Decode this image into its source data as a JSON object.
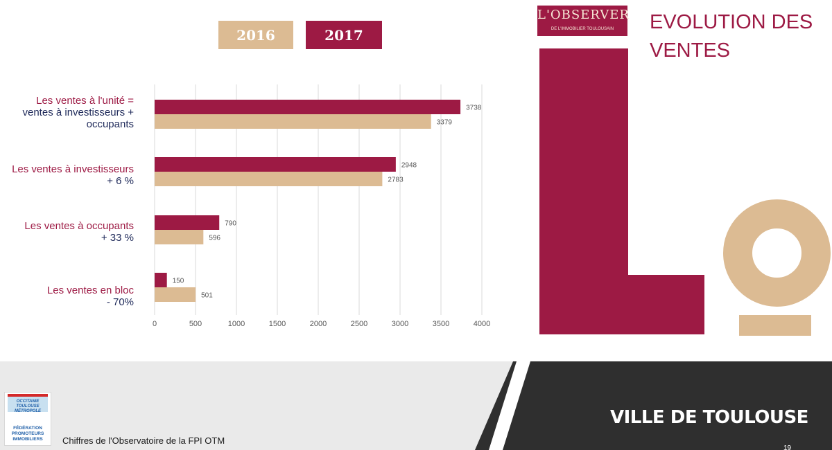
{
  "legend": {
    "y2016": "2016",
    "y2017": "2017"
  },
  "colors": {
    "y2016": "#dcbb93",
    "y2017": "#9d1a44",
    "category_line2": "#1f2a5a"
  },
  "chart_data": {
    "type": "bar",
    "orientation": "horizontal",
    "categories": [
      {
        "line1": "Les ventes à l'unité =",
        "line2": "ventes à investisseurs +",
        "line3": "occupants"
      },
      {
        "line1": "Les ventes à investisseurs",
        "line2": "+ 6 %"
      },
      {
        "line1": "Les ventes à occupants",
        "line2": "+ 33 %"
      },
      {
        "line1": "Les ventes en bloc",
        "line2": "- 70%"
      }
    ],
    "series": [
      {
        "name": "2017",
        "values": [
          3738,
          2948,
          790,
          150
        ]
      },
      {
        "name": "2016",
        "values": [
          3379,
          2783,
          596,
          501
        ]
      }
    ],
    "xlim": [
      0,
      4000
    ],
    "xticks": [
      0,
      500,
      1000,
      1500,
      2000,
      2500,
      3000,
      3500,
      4000
    ],
    "grid": true,
    "legend_position": "top"
  },
  "logo": {
    "name": "L'OBSERVER",
    "subtitle": "DE L'IMMOBILIER TOULOUSAIN"
  },
  "title": {
    "line1": "EVOLUTION DES",
    "line2": "VENTES"
  },
  "footer": {
    "city": "VILLE DE TOULOUSE",
    "page_number": "19",
    "source": "Chiffres de l'Observatoire de la FPI OTM",
    "fpi_region": "OCCITANIE TOULOUSE MÉTROPOLE",
    "fpi_name": "FÉDÉRATION PROMOTEURS IMMOBILIERS"
  }
}
